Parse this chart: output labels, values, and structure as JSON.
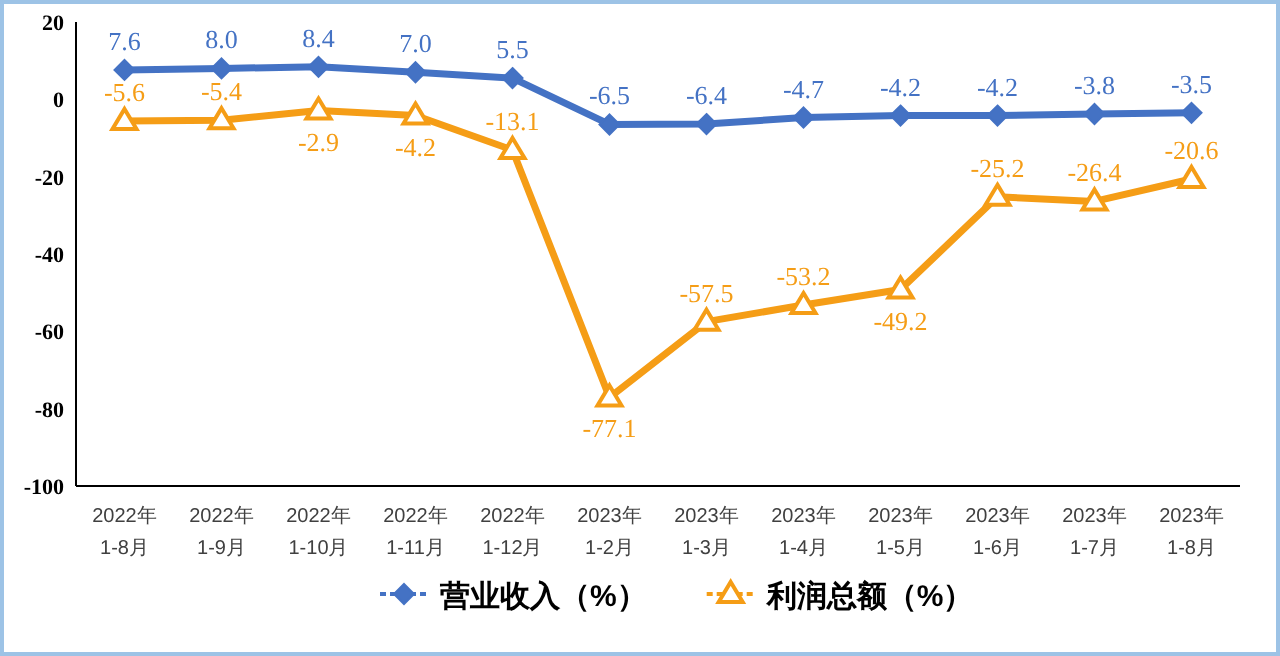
{
  "chart_data": {
    "type": "line",
    "categories": [
      "2022年\n1-8月",
      "2022年\n1-9月",
      "2022年\n1-10月",
      "2022年\n1-11月",
      "2022年\n1-12月",
      "2023年\n1-2月",
      "2023年\n1-3月",
      "2023年\n1-4月",
      "2023年\n1-5月",
      "2023年\n1-6月",
      "2023年\n1-7月",
      "2023年\n1-8月"
    ],
    "series": [
      {
        "name": "营业收入（%）",
        "color": "#4472c4",
        "marker": "diamond",
        "values": [
          7.6,
          8.0,
          8.4,
          7.0,
          5.5,
          -6.5,
          -6.4,
          -4.7,
          -4.2,
          -4.2,
          -3.8,
          -3.5
        ],
        "value_labels": [
          "7.6",
          "8.0",
          "8.4",
          "7.0",
          "5.5",
          "-6.5",
          "-6.4",
          "-4.7",
          "-4.2",
          "-4.2",
          "-3.8",
          "-3.5"
        ]
      },
      {
        "name": "利润总额（%）",
        "color": "#f59d16",
        "marker": "triangle",
        "values": [
          -5.6,
          -5.4,
          -2.9,
          -4.2,
          -13.1,
          -77.1,
          -57.5,
          -53.2,
          -49.2,
          -25.2,
          -26.4,
          -20.6
        ],
        "value_labels": [
          "-5.6",
          "-5.4",
          "-2.9",
          "-4.2",
          "-13.1",
          "-77.1",
          "-57.5",
          "-53.2",
          "-49.2",
          "-25.2",
          "-26.4",
          "-20.6"
        ]
      }
    ],
    "ylim": [
      -100,
      20
    ],
    "yticks": [
      20,
      0,
      -20,
      -40,
      -60,
      -80,
      -100
    ],
    "grid": false,
    "legend": "bottom"
  }
}
